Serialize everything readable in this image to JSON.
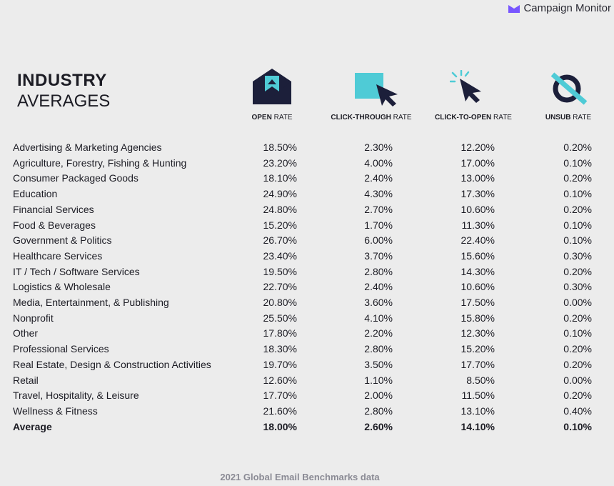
{
  "brand": {
    "name": "Campaign Monitor",
    "accent": "#7856ff"
  },
  "title": {
    "line1": "INDUSTRY",
    "line2": "AVERAGES"
  },
  "columns": [
    {
      "bold": "OPEN",
      "rest": " RATE",
      "icon": "envelope-icon"
    },
    {
      "bold": "CLICK-THROUGH",
      "rest": " RATE",
      "icon": "click-box-cursor-icon"
    },
    {
      "bold": "CLICK-TO-OPEN",
      "rest": " RATE",
      "icon": "click-cursor-icon"
    },
    {
      "bold": "UNSUB",
      "rest": " RATE",
      "icon": "unsubscribe-icon"
    }
  ],
  "colors": {
    "navy": "#1c1f3a",
    "teal": "#4fcbd6",
    "background": "#ececec"
  },
  "chart_data": {
    "type": "table",
    "title": "INDUSTRY AVERAGES",
    "headers": [
      "",
      "OPEN RATE",
      "CLICK-THROUGH RATE",
      "CLICK-TO-OPEN RATE",
      "UNSUB RATE"
    ],
    "rows": [
      [
        "Advertising & Marketing Agencies",
        "18.50%",
        "2.30%",
        "12.20%",
        "0.20%"
      ],
      [
        "Agriculture, Forestry, Fishing & Hunting",
        "23.20%",
        "4.00%",
        "17.00%",
        "0.10%"
      ],
      [
        "Consumer Packaged Goods",
        "18.10%",
        "2.40%",
        "13.00%",
        "0.20%"
      ],
      [
        "Education",
        "24.90%",
        "4.30%",
        "17.30%",
        "0.10%"
      ],
      [
        "Financial Services",
        "24.80%",
        "2.70%",
        "10.60%",
        "0.20%"
      ],
      [
        "Food & Beverages",
        "15.20%",
        "1.70%",
        "11.30%",
        "0.10%"
      ],
      [
        "Government & Politics",
        "26.70%",
        "6.00%",
        "22.40%",
        "0.10%"
      ],
      [
        "Healthcare Services",
        "23.40%",
        "3.70%",
        "15.60%",
        "0.30%"
      ],
      [
        "IT / Tech / Software Services",
        "19.50%",
        "2.80%",
        "14.30%",
        "0.20%"
      ],
      [
        "Logistics & Wholesale",
        "22.70%",
        "2.40%",
        "10.60%",
        "0.30%"
      ],
      [
        "Media, Entertainment, & Publishing",
        "20.80%",
        "3.60%",
        "17.50%",
        "0.00%"
      ],
      [
        "Nonprofit",
        "25.50%",
        "4.10%",
        "15.80%",
        "0.20%"
      ],
      [
        "Other",
        "17.80%",
        "2.20%",
        "12.30%",
        "0.10%"
      ],
      [
        "Professional Services",
        "18.30%",
        "2.80%",
        "15.20%",
        "0.20%"
      ],
      [
        "Real Estate, Design & Construction Activities",
        "19.70%",
        "3.50%",
        "17.70%",
        "0.20%"
      ],
      [
        "Retail",
        "12.60%",
        "1.10%",
        "8.50%",
        "0.00%"
      ],
      [
        "Travel, Hospitality, & Leisure",
        "17.70%",
        "2.00%",
        "11.50%",
        "0.20%"
      ],
      [
        "Wellness & Fitness",
        "21.60%",
        "2.80%",
        "13.10%",
        "0.40%"
      ]
    ],
    "average": [
      "Average",
      "18.00%",
      "2.60%",
      "14.10%",
      "0.10%"
    ]
  },
  "footer": "2021 Global Email Benchmarks data"
}
